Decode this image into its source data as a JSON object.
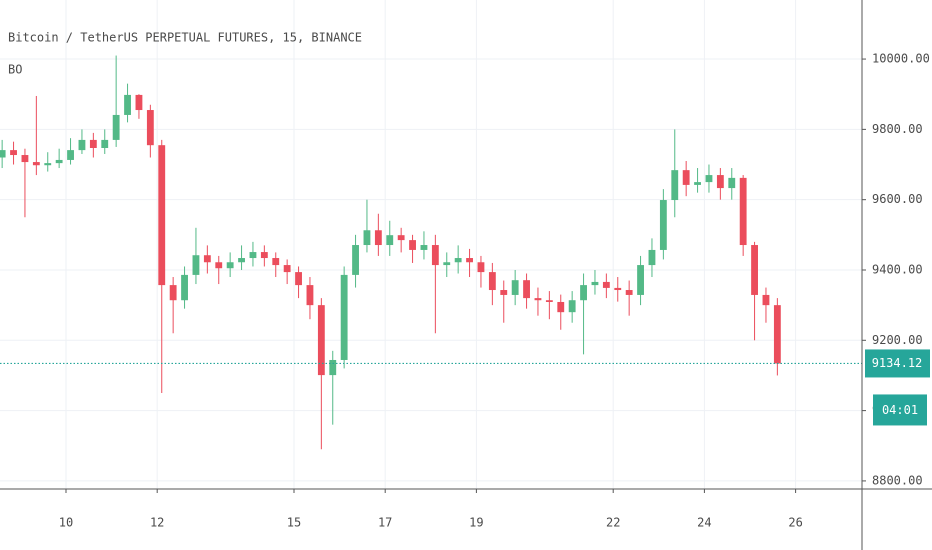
{
  "chart_data": {
    "type": "candlestick",
    "title": "Bitcoin / TetherUS PERPETUAL FUTURES, 15, BINANCE",
    "indicator": "BO",
    "up_color": "#53b987",
    "down_color": "#eb4d5c",
    "last_price": 9134.12,
    "last_price_color": "#26a69a",
    "countdown": "04:01",
    "grid": true,
    "xlim": [
      8.553,
      27.456
    ],
    "xticks": [
      10,
      12,
      15,
      17,
      19,
      22,
      24,
      26
    ],
    "ylim": [
      8777,
      10168
    ],
    "yticks": [
      {
        "value": 8800,
        "label": "8800.00"
      },
      {
        "value": 9000,
        "label": "9000.00"
      },
      {
        "value": 9200,
        "label": "9200.00"
      },
      {
        "value": 9400,
        "label": "9400.00"
      },
      {
        "value": 9600,
        "label": "9600.00"
      },
      {
        "value": 9800,
        "label": "9800.00"
      },
      {
        "value": 10000,
        "label": "10000.00"
      }
    ],
    "x": [
      8.6,
      8.85,
      9.1,
      9.35,
      9.6,
      9.85,
      10.1,
      10.35,
      10.6,
      10.85,
      11.1,
      11.35,
      11.6,
      11.85,
      12.1,
      12.35,
      12.6,
      12.85,
      13.1,
      13.35,
      13.6,
      13.85,
      14.1,
      14.35,
      14.6,
      14.85,
      15.1,
      15.35,
      15.6,
      15.85,
      16.1,
      16.35,
      16.6,
      16.85,
      17.1,
      17.35,
      17.6,
      17.85,
      18.1,
      18.35,
      18.6,
      18.85,
      19.1,
      19.35,
      19.6,
      19.85,
      20.1,
      20.35,
      20.6,
      20.85,
      21.1,
      21.35,
      21.6,
      21.85,
      22.1,
      22.35,
      22.6,
      22.85,
      23.1,
      23.35,
      23.6,
      23.85,
      24.1,
      24.35,
      24.6,
      24.85,
      25.1,
      25.35,
      25.6
    ],
    "open": [
      9720,
      9741,
      9727,
      9707,
      9698,
      9704,
      9713,
      9741,
      9770,
      9747,
      9770,
      9841,
      9898,
      9855,
      9755,
      9357,
      9314,
      9386,
      9442,
      9422,
      9405,
      9422,
      9434,
      9451,
      9434,
      9414,
      9394,
      9357,
      9300,
      9101,
      9144,
      9386,
      9471,
      9513,
      9471,
      9499,
      9485,
      9457,
      9471,
      9414,
      9422,
      9434,
      9422,
      9394,
      9343,
      9329,
      9371,
      9320,
      9314,
      9309,
      9280,
      9314,
      9357,
      9366,
      9349,
      9343,
      9329,
      9414,
      9457,
      9599,
      9684,
      9642,
      9650,
      9670,
      9633,
      9662,
      9471,
      9329,
      9300
    ],
    "high": [
      9770,
      9765,
      9745,
      9895,
      9735,
      9745,
      9775,
      9800,
      9790,
      9800,
      10010,
      9930,
      9900,
      9870,
      9770,
      9380,
      9410,
      9520,
      9470,
      9440,
      9450,
      9470,
      9480,
      9470,
      9450,
      9430,
      9410,
      9380,
      9320,
      9170,
      9410,
      9500,
      9600,
      9560,
      9540,
      9520,
      9500,
      9510,
      9500,
      9450,
      9470,
      9460,
      9440,
      9420,
      9370,
      9400,
      9390,
      9350,
      9340,
      9330,
      9340,
      9390,
      9400,
      9390,
      9380,
      9370,
      9440,
      9490,
      9630,
      9800,
      9710,
      9690,
      9700,
      9690,
      9690,
      9670,
      9480,
      9350,
      9320
    ],
    "low": [
      9690,
      9700,
      9550,
      9670,
      9680,
      9690,
      9700,
      9730,
      9720,
      9730,
      9750,
      9820,
      9830,
      9720,
      9050,
      9220,
      9290,
      9360,
      9390,
      9360,
      9380,
      9400,
      9410,
      9410,
      9380,
      9360,
      9320,
      9260,
      8890,
      8960,
      9120,
      9350,
      9450,
      9440,
      9440,
      9450,
      9420,
      9430,
      9220,
      9380,
      9390,
      9380,
      9350,
      9300,
      9250,
      9300,
      9290,
      9270,
      9260,
      9230,
      9250,
      9160,
      9330,
      9320,
      9310,
      9270,
      9300,
      9380,
      9430,
      9550,
      9610,
      9620,
      9620,
      9600,
      9600,
      9440,
      9200,
      9250,
      9100
    ],
    "close": [
      9741,
      9727,
      9707,
      9698,
      9704,
      9713,
      9741,
      9770,
      9747,
      9770,
      9841,
      9898,
      9855,
      9755,
      9357,
      9314,
      9386,
      9442,
      9422,
      9405,
      9422,
      9434,
      9451,
      9434,
      9414,
      9394,
      9357,
      9300,
      9101,
      9144,
      9386,
      9471,
      9513,
      9471,
      9499,
      9485,
      9457,
      9471,
      9414,
      9422,
      9434,
      9422,
      9394,
      9343,
      9329,
      9371,
      9320,
      9314,
      9309,
      9280,
      9314,
      9357,
      9366,
      9349,
      9343,
      9329,
      9414,
      9457,
      9599,
      9684,
      9642,
      9650,
      9670,
      9633,
      9662,
      9471,
      9329,
      9300,
      9134
    ]
  }
}
